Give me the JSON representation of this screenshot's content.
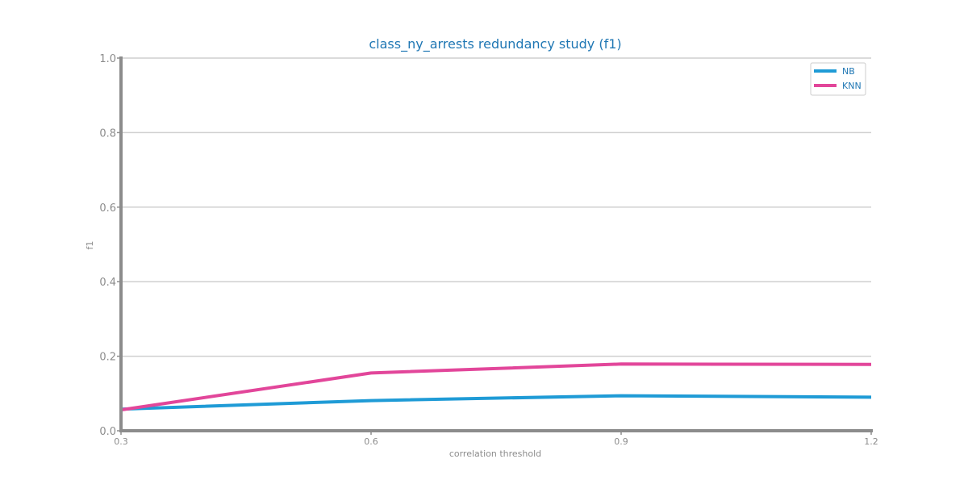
{
  "chart_data": {
    "type": "line",
    "title": "class_ny_arrests redundancy study (f1)",
    "xlabel": "correlation threshold",
    "ylabel": "f1",
    "x": [
      0.3,
      0.6,
      0.9,
      1.2
    ],
    "x_tick_labels": [
      "0.3",
      "0.6",
      "0.9",
      "1.2"
    ],
    "y_tick_labels": [
      "0.0",
      "0.2",
      "0.4",
      "0.6",
      "0.8",
      "1.0"
    ],
    "y_ticks": [
      0.0,
      0.2,
      0.4,
      0.6,
      0.8,
      1.0
    ],
    "xlim": [
      0.3,
      1.2
    ],
    "ylim": [
      0.0,
      1.0
    ],
    "grid": "horizontal",
    "legend_position": "top-right",
    "series": [
      {
        "name": "NB",
        "color": "#1f9bd6",
        "values": [
          0.058,
          0.081,
          0.094,
          0.09
        ]
      },
      {
        "name": "KNN",
        "color": "#e2469a",
        "values": [
          0.056,
          0.155,
          0.179,
          0.178
        ]
      }
    ]
  }
}
